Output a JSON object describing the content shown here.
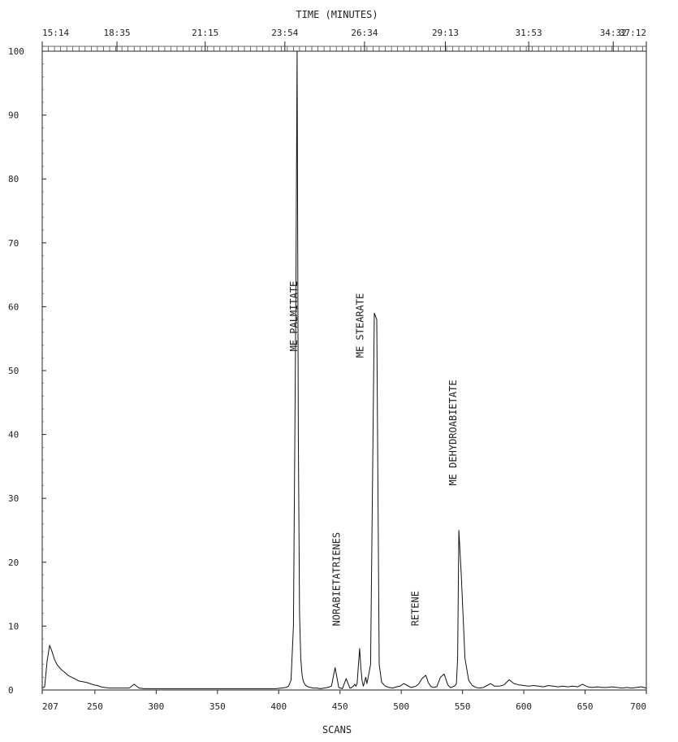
{
  "chart_data": {
    "type": "line",
    "title": "",
    "xlabel": "SCANS",
    "x2label": "TIME (MINUTES)",
    "ylabel": "",
    "xlim": [
      207,
      700
    ],
    "ylim": [
      0,
      100
    ],
    "x_ticks": [
      "207",
      "250",
      "300",
      "350",
      "400",
      "450",
      "500",
      "550",
      "600",
      "650",
      "700"
    ],
    "x_tick_values": [
      207,
      250,
      300,
      350,
      400,
      450,
      500,
      550,
      600,
      650,
      700
    ],
    "y_ticks": [
      "0",
      "10",
      "20",
      "30",
      "40",
      "50",
      "60",
      "70",
      "80",
      "90",
      "100"
    ],
    "y_tick_values": [
      0,
      10,
      20,
      30,
      40,
      50,
      60,
      70,
      80,
      90,
      100
    ],
    "time_ticks": [
      "15:14",
      "18:35",
      "21:15",
      "23:54",
      "26:34",
      "29:13",
      "31:53",
      "34:32",
      "37:12"
    ],
    "time_tick_scans": [
      207,
      268,
      340,
      405,
      470,
      536,
      604,
      673,
      700
    ],
    "grid": false,
    "series": [
      {
        "x": [
          207,
          209,
          211,
          213,
          215,
          217,
          219,
          222,
          225,
          228,
          231,
          234,
          237,
          240,
          243,
          246,
          249,
          252,
          255,
          258,
          262,
          266,
          270,
          274,
          278,
          282,
          286,
          290,
          294,
          298,
          302,
          306,
          310,
          314,
          318,
          322,
          326,
          330,
          334,
          338,
          342,
          346,
          350,
          354,
          358,
          362,
          366,
          370,
          374,
          378,
          382,
          386,
          390,
          394,
          398,
          402,
          406,
          408,
          410,
          412,
          414,
          415,
          416,
          417,
          418,
          419,
          420,
          421,
          422,
          424,
          426,
          428,
          431,
          434,
          437,
          440,
          443,
          446,
          449,
          452,
          455,
          458,
          459,
          460,
          461,
          462,
          463,
          464,
          466,
          467,
          468,
          469,
          470,
          471,
          472,
          475,
          478,
          480,
          482,
          484,
          487,
          490,
          493,
          496,
          499,
          502,
          505,
          508,
          510,
          512,
          514,
          517,
          520,
          522,
          524,
          526,
          529,
          532,
          535,
          538,
          540,
          541,
          542,
          543,
          544,
          545,
          546,
          547,
          549,
          552,
          555,
          558,
          561,
          564,
          567,
          570,
          573,
          576,
          580,
          584,
          588,
          592,
          596,
          600,
          604,
          608,
          612,
          616,
          620,
          624,
          628,
          632,
          636,
          640,
          644,
          648,
          652,
          656,
          660,
          664,
          668,
          672,
          676,
          680,
          684,
          688,
          692,
          696,
          700
        ],
        "y": [
          0.3,
          0.5,
          4.5,
          7.0,
          6.0,
          4.8,
          4.0,
          3.3,
          2.8,
          2.3,
          2.0,
          1.7,
          1.4,
          1.3,
          1.2,
          1.0,
          0.8,
          0.7,
          0.5,
          0.4,
          0.3,
          0.3,
          0.3,
          0.3,
          0.3,
          0.9,
          0.3,
          0.2,
          0.2,
          0.2,
          0.2,
          0.2,
          0.2,
          0.2,
          0.2,
          0.2,
          0.2,
          0.2,
          0.2,
          0.2,
          0.2,
          0.2,
          0.2,
          0.2,
          0.2,
          0.2,
          0.2,
          0.2,
          0.2,
          0.2,
          0.2,
          0.2,
          0.2,
          0.2,
          0.2,
          0.3,
          0.4,
          0.6,
          1.5,
          10.0,
          62.0,
          100.0,
          40.0,
          12.0,
          5.0,
          2.5,
          1.4,
          1.0,
          0.7,
          0.5,
          0.4,
          0.3,
          0.3,
          0.2,
          0.3,
          0.4,
          0.6,
          3.5,
          0.4,
          0.2,
          1.8,
          0.3,
          0.3,
          0.5,
          0.6,
          0.9,
          0.6,
          1.0,
          6.5,
          3.5,
          1.5,
          0.6,
          1.2,
          2.0,
          1.0,
          4.0,
          59.0,
          58.0,
          4.0,
          1.2,
          0.6,
          0.4,
          0.3,
          0.5,
          0.6,
          1.0,
          0.7,
          0.4,
          0.5,
          0.6,
          0.9,
          1.8,
          2.3,
          1.2,
          0.6,
          0.4,
          0.5,
          2.0,
          2.5,
          0.8,
          0.4,
          0.4,
          0.5,
          0.6,
          0.7,
          1.0,
          5.0,
          25.0,
          18.0,
          5.0,
          1.5,
          0.7,
          0.4,
          0.3,
          0.4,
          0.7,
          1.0,
          0.6,
          0.6,
          0.8,
          1.6,
          1.0,
          0.8,
          0.7,
          0.6,
          0.7,
          0.6,
          0.5,
          0.7,
          0.6,
          0.5,
          0.6,
          0.5,
          0.6,
          0.5,
          0.9,
          0.5,
          0.4,
          0.5,
          0.4,
          0.4,
          0.5,
          0.4,
          0.3,
          0.4,
          0.3,
          0.4,
          0.5,
          0.3
        ]
      }
    ],
    "annotations": [
      {
        "text": "ME PALMITATE",
        "x": 415,
        "y": 53
      },
      {
        "text": "NORABIETATRIENES",
        "x": 450,
        "y": 10
      },
      {
        "text": "ME STEARATE",
        "x": 469,
        "y": 52
      },
      {
        "text": "RETENE",
        "x": 514,
        "y": 10
      },
      {
        "text": "ME DEHYDROABIETATE",
        "x": 545,
        "y": 32
      }
    ]
  }
}
